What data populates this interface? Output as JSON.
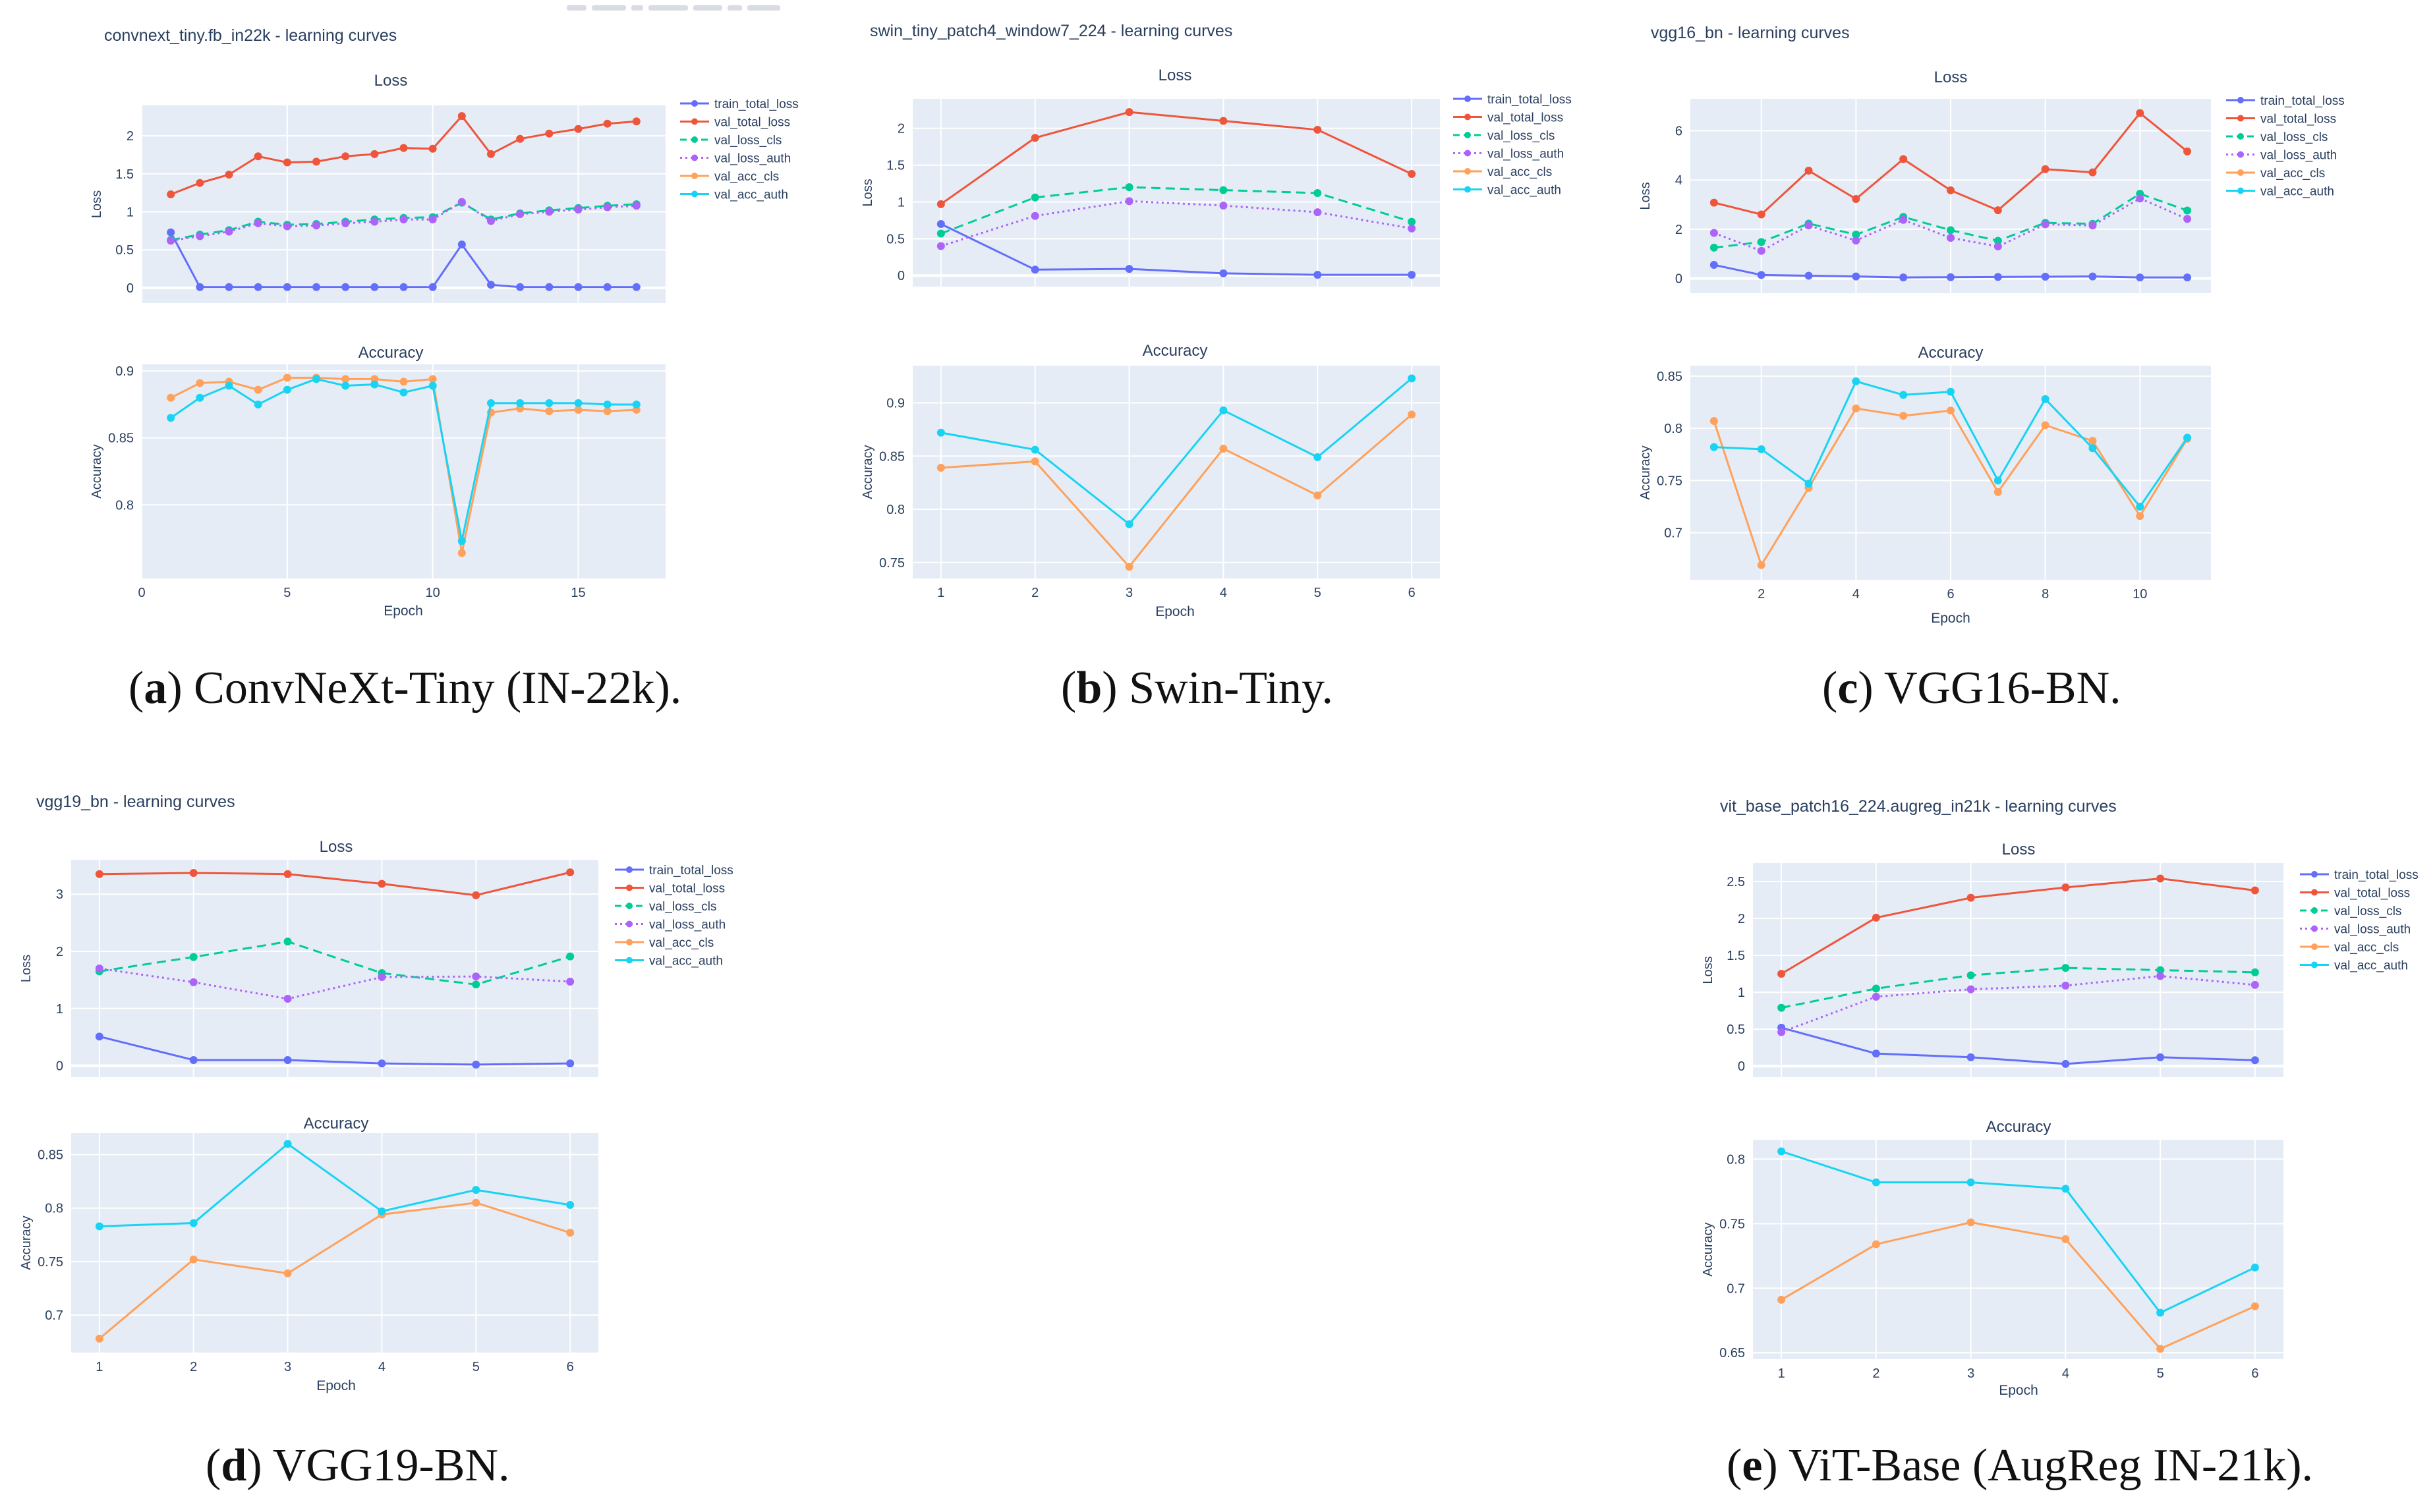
{
  "captions": [
    {
      "letter": "a",
      "text": " ConvNeXt-Tiny (IN-22k)."
    },
    {
      "letter": "b",
      "text": " Swin-Tiny."
    },
    {
      "letter": "c",
      "text": " VGG16-BN."
    },
    {
      "letter": "d",
      "text": " VGG19-BN."
    },
    {
      "letter": "e",
      "text": " ViT-Base (AugReg IN-21k)."
    }
  ],
  "colors": {
    "train_total_loss": "#636efa",
    "val_total_loss": "#ef553b",
    "val_loss_cls": "#00cc96",
    "val_loss_auth": "#ab63fa",
    "val_acc_cls": "#ffa15a",
    "val_acc_auth": "#19d3f3",
    "plot_bg": "#e5ecf6",
    "grid": "#ffffff",
    "text": "#2a3f5f"
  },
  "chart_data": [
    {
      "type": "line",
      "title": "convnext_tiny.fb_in22k - learning curves",
      "legend": [
        "train_total_loss",
        "val_total_loss",
        "val_loss_cls",
        "val_loss_auth",
        "val_acc_cls",
        "val_acc_auth"
      ],
      "legend_placement": "top-right",
      "x": [
        1,
        2,
        3,
        4,
        5,
        6,
        7,
        8,
        9,
        10,
        11,
        12,
        13,
        14,
        15,
        16,
        17
      ],
      "xlabel": "Epoch",
      "xticks": [
        0,
        5,
        10,
        15
      ],
      "xlim": [
        0,
        18
      ],
      "loss": {
        "subtitle": "Loss",
        "ylabel": "Loss",
        "ylim": [
          -0.2,
          2.4
        ],
        "yticks": [
          0,
          0.5,
          1,
          1.5,
          2
        ],
        "ytick_labels": [
          "0",
          "0.5",
          "1",
          "1.5",
          "2"
        ],
        "series": [
          {
            "name": "train_total_loss",
            "values": [
              0.73,
              0.01,
              0.01,
              0.01,
              0.01,
              0.01,
              0.01,
              0.01,
              0.01,
              0.01,
              0.57,
              0.04,
              0.01,
              0.01,
              0.01,
              0.01,
              0.01
            ]
          },
          {
            "name": "val_total_loss",
            "values": [
              1.23,
              1.38,
              1.49,
              1.73,
              1.65,
              1.66,
              1.73,
              1.76,
              1.84,
              1.83,
              2.26,
              1.76,
              1.96,
              2.03,
              2.09,
              2.16,
              2.19
            ]
          },
          {
            "name": "val_loss_cls",
            "values": [
              0.63,
              0.7,
              0.76,
              0.87,
              0.83,
              0.84,
              0.87,
              0.9,
              0.92,
              0.93,
              1.12,
              0.9,
              0.98,
              1.02,
              1.05,
              1.08,
              1.1
            ]
          },
          {
            "name": "val_loss_auth",
            "values": [
              0.62,
              0.68,
              0.74,
              0.85,
              0.81,
              0.82,
              0.85,
              0.87,
              0.9,
              0.9,
              1.13,
              0.88,
              0.97,
              1.0,
              1.03,
              1.06,
              1.08
            ]
          }
        ]
      },
      "accuracy": {
        "subtitle": "Accuracy",
        "ylabel": "Accuracy",
        "ylim": [
          0.745,
          0.905
        ],
        "yticks": [
          0.8,
          0.85,
          0.9
        ],
        "ytick_labels": [
          "0.8",
          "0.85",
          "0.9"
        ],
        "series": [
          {
            "name": "val_acc_cls",
            "values": [
              0.88,
              0.891,
              0.892,
              0.886,
              0.895,
              0.895,
              0.894,
              0.894,
              0.892,
              0.894,
              0.764,
              0.869,
              0.872,
              0.87,
              0.871,
              0.87,
              0.871
            ]
          },
          {
            "name": "val_acc_auth",
            "values": [
              0.865,
              0.88,
              0.889,
              0.875,
              0.886,
              0.894,
              0.889,
              0.89,
              0.884,
              0.889,
              0.773,
              0.876,
              0.876,
              0.876,
              0.876,
              0.875,
              0.875
            ]
          }
        ]
      }
    },
    {
      "type": "line",
      "title": "swin_tiny_patch4_window7_224 - learning curves",
      "legend": [
        "train_total_loss",
        "val_total_loss",
        "val_loss_cls",
        "val_loss_auth",
        "val_acc_cls",
        "val_acc_auth"
      ],
      "legend_placement": "top-right",
      "x": [
        1,
        2,
        3,
        4,
        5,
        6
      ],
      "xlabel": "Epoch",
      "xticks": [
        1,
        2,
        3,
        4,
        5,
        6
      ],
      "xlim": [
        0.7,
        6.3
      ],
      "loss": {
        "subtitle": "Loss",
        "ylabel": "Loss",
        "ylim": [
          -0.15,
          2.4
        ],
        "yticks": [
          0,
          0.5,
          1,
          1.5,
          2
        ],
        "ytick_labels": [
          "0",
          "0.5",
          "1",
          "1.5",
          "2"
        ],
        "series": [
          {
            "name": "train_total_loss",
            "values": [
              0.7,
              0.08,
              0.09,
              0.03,
              0.01,
              0.01
            ]
          },
          {
            "name": "val_total_loss",
            "values": [
              0.97,
              1.87,
              2.22,
              2.1,
              1.98,
              1.38
            ]
          },
          {
            "name": "val_loss_cls",
            "values": [
              0.57,
              1.06,
              1.2,
              1.16,
              1.12,
              0.73
            ]
          },
          {
            "name": "val_loss_auth",
            "values": [
              0.4,
              0.81,
              1.01,
              0.95,
              0.86,
              0.64
            ]
          }
        ]
      },
      "accuracy": {
        "subtitle": "Accuracy",
        "ylabel": "Accuracy",
        "ylim": [
          0.735,
          0.935
        ],
        "yticks": [
          0.75,
          0.8,
          0.85,
          0.9
        ],
        "ytick_labels": [
          "0.75",
          "0.8",
          "0.85",
          "0.9"
        ],
        "series": [
          {
            "name": "val_acc_cls",
            "values": [
              0.839,
              0.845,
              0.746,
              0.857,
              0.813,
              0.889
            ]
          },
          {
            "name": "val_acc_auth",
            "values": [
              0.872,
              0.856,
              0.786,
              0.893,
              0.849,
              0.923
            ]
          }
        ]
      }
    },
    {
      "type": "line",
      "title": "vgg16_bn - learning curves",
      "legend": [
        "train_total_loss",
        "val_total_loss",
        "val_loss_cls",
        "val_loss_auth",
        "val_acc_cls",
        "val_acc_auth"
      ],
      "legend_placement": "top-right",
      "x": [
        1,
        2,
        3,
        4,
        5,
        6,
        7,
        8,
        9,
        10,
        11
      ],
      "xlabel": "Epoch",
      "xticks": [
        2,
        4,
        6,
        8,
        10
      ],
      "xlim": [
        0.5,
        11.5
      ],
      "loss": {
        "subtitle": "Loss",
        "ylabel": "Loss",
        "ylim": [
          -0.6,
          7.3
        ],
        "yticks": [
          0,
          2,
          4,
          6
        ],
        "ytick_labels": [
          "0",
          "2",
          "4",
          "6"
        ],
        "series": [
          {
            "name": "train_total_loss",
            "values": [
              0.55,
              0.14,
              0.11,
              0.08,
              0.04,
              0.05,
              0.06,
              0.07,
              0.08,
              0.04,
              0.04
            ]
          },
          {
            "name": "val_total_loss",
            "values": [
              3.08,
              2.6,
              4.38,
              3.23,
              4.85,
              3.58,
              2.77,
              4.44,
              4.31,
              6.72,
              5.16
            ]
          },
          {
            "name": "val_loss_cls",
            "values": [
              1.25,
              1.48,
              2.23,
              1.78,
              2.5,
              1.96,
              1.53,
              2.26,
              2.22,
              3.44,
              2.76
            ]
          },
          {
            "name": "val_loss_auth",
            "values": [
              1.85,
              1.12,
              2.15,
              1.54,
              2.38,
              1.65,
              1.3,
              2.2,
              2.15,
              3.25,
              2.42
            ]
          }
        ]
      },
      "accuracy": {
        "subtitle": "Accuracy",
        "ylabel": "Accuracy",
        "ylim": [
          0.655,
          0.86
        ],
        "yticks": [
          0.7,
          0.75,
          0.8,
          0.85
        ],
        "ytick_labels": [
          "0.7",
          "0.75",
          "0.8",
          "0.85"
        ],
        "series": [
          {
            "name": "val_acc_cls",
            "values": [
              0.807,
              0.669,
              0.743,
              0.819,
              0.812,
              0.817,
              0.739,
              0.803,
              0.788,
              0.716,
              0.79
            ]
          },
          {
            "name": "val_acc_auth",
            "values": [
              0.782,
              0.78,
              0.747,
              0.845,
              0.832,
              0.835,
              0.75,
              0.828,
              0.781,
              0.725,
              0.791
            ]
          }
        ]
      }
    },
    {
      "type": "line",
      "title": "vgg19_bn - learning curves",
      "legend": [
        "train_total_loss",
        "val_total_loss",
        "val_loss_cls",
        "val_loss_auth",
        "val_acc_cls",
        "val_acc_auth"
      ],
      "legend_placement": "top-right",
      "x": [
        1,
        2,
        3,
        4,
        5,
        6
      ],
      "xlabel": "Epoch",
      "xticks": [
        1,
        2,
        3,
        4,
        5,
        6
      ],
      "xlim": [
        0.7,
        6.3
      ],
      "loss": {
        "subtitle": "Loss",
        "ylabel": "Loss",
        "ylim": [
          -0.2,
          3.6
        ],
        "yticks": [
          0,
          1,
          2,
          3
        ],
        "ytick_labels": [
          "0",
          "1",
          "2",
          "3"
        ],
        "series": [
          {
            "name": "train_total_loss",
            "values": [
              0.51,
              0.1,
              0.1,
              0.04,
              0.02,
              0.04
            ]
          },
          {
            "name": "val_total_loss",
            "values": [
              3.35,
              3.37,
              3.35,
              3.18,
              2.98,
              3.38
            ]
          },
          {
            "name": "val_loss_cls",
            "values": [
              1.65,
              1.9,
              2.17,
              1.62,
              1.42,
              1.91
            ]
          },
          {
            "name": "val_loss_auth",
            "values": [
              1.7,
              1.46,
              1.17,
              1.55,
              1.56,
              1.47
            ]
          }
        ]
      },
      "accuracy": {
        "subtitle": "Accuracy",
        "ylabel": "Accuracy",
        "ylim": [
          0.665,
          0.87
        ],
        "yticks": [
          0.7,
          0.75,
          0.8,
          0.85
        ],
        "ytick_labels": [
          "0.7",
          "0.75",
          "0.8",
          "0.85"
        ],
        "series": [
          {
            "name": "val_acc_cls",
            "values": [
              0.678,
              0.752,
              0.739,
              0.794,
              0.805,
              0.777
            ]
          },
          {
            "name": "val_acc_auth",
            "values": [
              0.783,
              0.786,
              0.86,
              0.797,
              0.817,
              0.803
            ]
          }
        ]
      }
    },
    {
      "type": "line",
      "title": "vit_base_patch16_224.augreg_in21k - learning curves",
      "legend": [
        "train_total_loss",
        "val_total_loss",
        "val_loss_cls",
        "val_loss_auth",
        "val_acc_cls",
        "val_acc_auth"
      ],
      "legend_placement": "top-right",
      "x": [
        1,
        2,
        3,
        4,
        5,
        6
      ],
      "xlabel": "Epoch",
      "xticks": [
        1,
        2,
        3,
        4,
        5,
        6
      ],
      "xlim": [
        0.7,
        6.3
      ],
      "loss": {
        "subtitle": "Loss",
        "ylabel": "Loss",
        "ylim": [
          -0.15,
          2.75
        ],
        "yticks": [
          0,
          0.5,
          1,
          1.5,
          2,
          2.5
        ],
        "ytick_labels": [
          "0",
          "0.5",
          "1",
          "1.5",
          "2",
          "2.5"
        ],
        "series": [
          {
            "name": "train_total_loss",
            "values": [
              0.52,
              0.17,
              0.12,
              0.03,
              0.12,
              0.08
            ]
          },
          {
            "name": "val_total_loss",
            "values": [
              1.25,
              2.01,
              2.28,
              2.42,
              2.54,
              2.38
            ]
          },
          {
            "name": "val_loss_cls",
            "values": [
              0.79,
              1.05,
              1.23,
              1.33,
              1.3,
              1.27
            ]
          },
          {
            "name": "val_loss_auth",
            "values": [
              0.46,
              0.94,
              1.04,
              1.09,
              1.22,
              1.1
            ]
          }
        ]
      },
      "accuracy": {
        "subtitle": "Accuracy",
        "ylabel": "Accuracy",
        "ylim": [
          0.645,
          0.815
        ],
        "yticks": [
          0.65,
          0.7,
          0.75,
          0.8
        ],
        "ytick_labels": [
          "0.65",
          "0.7",
          "0.75",
          "0.8"
        ],
        "series": [
          {
            "name": "val_acc_cls",
            "values": [
              0.691,
              0.734,
              0.751,
              0.738,
              0.653,
              0.686
            ]
          },
          {
            "name": "val_acc_auth",
            "values": [
              0.806,
              0.782,
              0.782,
              0.777,
              0.681,
              0.716
            ]
          }
        ]
      }
    }
  ]
}
